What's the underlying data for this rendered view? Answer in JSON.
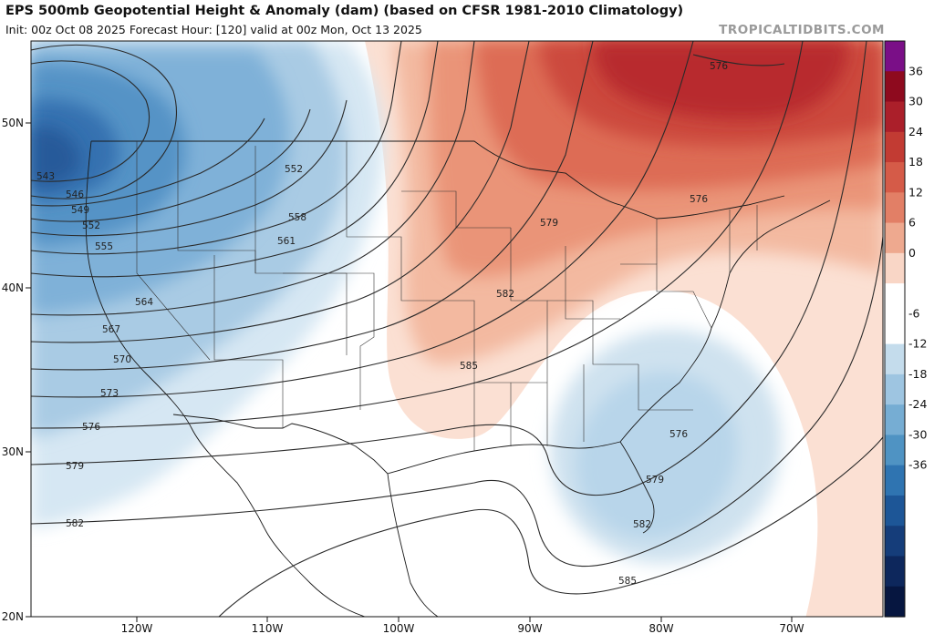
{
  "header": {
    "title": "EPS 500mb Geopotential Height & Anomaly (dam) (based on CFSR 1981-2010 Climatology)",
    "subtitle": "Init: 00z Oct 08 2025   Forecast Hour: [120]   valid at 00z Mon, Oct 13 2025",
    "brand": "TROPICALTIDBITS.COM"
  },
  "axes": {
    "lat_labels": [
      "50N",
      "40N",
      "30N",
      "20N"
    ],
    "lon_labels": [
      "120W",
      "110W",
      "100W",
      "90W",
      "80W",
      "70W"
    ]
  },
  "colorbar": {
    "ticks": [
      "36",
      "30",
      "24",
      "18",
      "12",
      "6",
      "0",
      "-6",
      "-12",
      "-18",
      "-24",
      "-30",
      "-36"
    ],
    "colors": [
      "#7a0f87",
      "#8e0a1e",
      "#ab1f2a",
      "#c23b33",
      "#d55b48",
      "#e27f66",
      "#eea98f",
      "#f9d6c6",
      "#ffffff",
      "#ffffff",
      "#c4dcec",
      "#9ec5e1",
      "#76add3",
      "#4f93c3",
      "#2f74b1",
      "#1d5697",
      "#153d7a",
      "#0d275c",
      "#061640"
    ]
  },
  "contour_labels": [
    "543",
    "546",
    "549",
    "552",
    "555",
    "564",
    "567",
    "570",
    "573",
    "576",
    "579",
    "582",
    "552",
    "558",
    "561",
    "576",
    "579",
    "582",
    "585",
    "576",
    "579",
    "582",
    "585",
    "576"
  ],
  "colors": {
    "positive_anomaly": "#c8333a",
    "negative_anomaly": "#2d6fb0",
    "contour": "#2a2a2a",
    "border": "#1a1a1a"
  }
}
